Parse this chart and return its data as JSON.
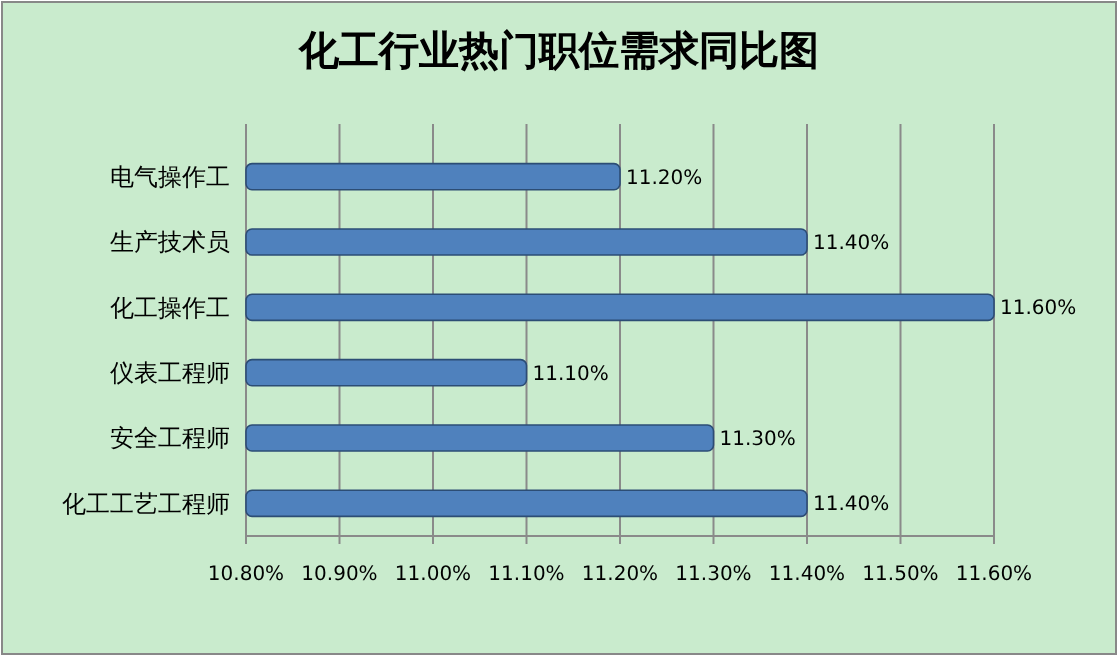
{
  "chart_data": {
    "type": "bar",
    "orientation": "horizontal",
    "title": "化工行业热门职位需求同比图",
    "categories": [
      "电气操作工",
      "生产技术员",
      "化工操作工",
      "仪表工程师",
      "安全工程师",
      "化工工艺工程师"
    ],
    "values": [
      11.2,
      11.4,
      11.6,
      11.1,
      11.3,
      11.4
    ],
    "value_labels": [
      "11.20%",
      "11.40%",
      "11.60%",
      "11.10%",
      "11.30%",
      "11.40%"
    ],
    "color": "#4f81bd",
    "xlim": [
      10.8,
      11.6
    ],
    "xticks": [
      {
        "value": 10.8,
        "label": "10.80%"
      },
      {
        "value": 10.9,
        "label": "10.90%"
      },
      {
        "value": 11.0,
        "label": "11.00%"
      },
      {
        "value": 11.1,
        "label": "11.10%"
      },
      {
        "value": 11.2,
        "label": "11.20%"
      },
      {
        "value": 11.3,
        "label": "11.30%"
      },
      {
        "value": 11.4,
        "label": "11.40%"
      },
      {
        "value": 11.5,
        "label": "11.50%"
      },
      {
        "value": 11.6,
        "label": "11.60%"
      }
    ],
    "grid": "x"
  }
}
